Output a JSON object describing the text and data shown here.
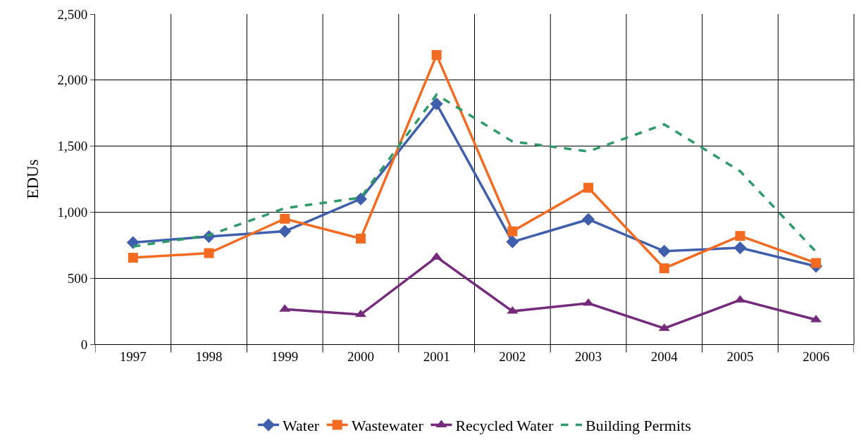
{
  "chart_data": {
    "type": "line",
    "ylabel": "EDUs",
    "categories": [
      "1997",
      "1998",
      "1999",
      "2000",
      "2001",
      "2002",
      "2003",
      "2004",
      "2005",
      "2006"
    ],
    "series": [
      {
        "name": "Water",
        "color": "#3f5fad",
        "marker": "diamond",
        "line_style": "solid",
        "values": [
          770,
          815,
          855,
          1100,
          1820,
          775,
          945,
          705,
          730,
          590
        ]
      },
      {
        "name": "Wastewater",
        "color": "#f26b21",
        "marker": "square",
        "line_style": "solid",
        "values": [
          655,
          690,
          950,
          800,
          2190,
          855,
          1185,
          575,
          820,
          615
        ]
      },
      {
        "name": "Recycled Water",
        "color": "#762a7c",
        "marker": "triangle",
        "line_style": "solid",
        "values": [
          null,
          null,
          265,
          225,
          660,
          250,
          310,
          120,
          335,
          185
        ]
      },
      {
        "name": "Building Permits",
        "color": "#2e9a6a",
        "marker": "none",
        "line_style": "dashed",
        "values": [
          740,
          825,
          1030,
          1110,
          1890,
          1535,
          1460,
          1665,
          1310,
          700
        ]
      }
    ],
    "ylim": [
      0,
      2500
    ],
    "yticks": [
      {
        "value": 0,
        "label": "0"
      },
      {
        "value": 500,
        "label": "500"
      },
      {
        "value": 1000,
        "label": "1,000"
      },
      {
        "value": 1500,
        "label": "1,500"
      },
      {
        "value": 2000,
        "label": "2,000"
      },
      {
        "value": 2500,
        "label": "2,500"
      }
    ],
    "grid": true,
    "legend": "bottom"
  }
}
